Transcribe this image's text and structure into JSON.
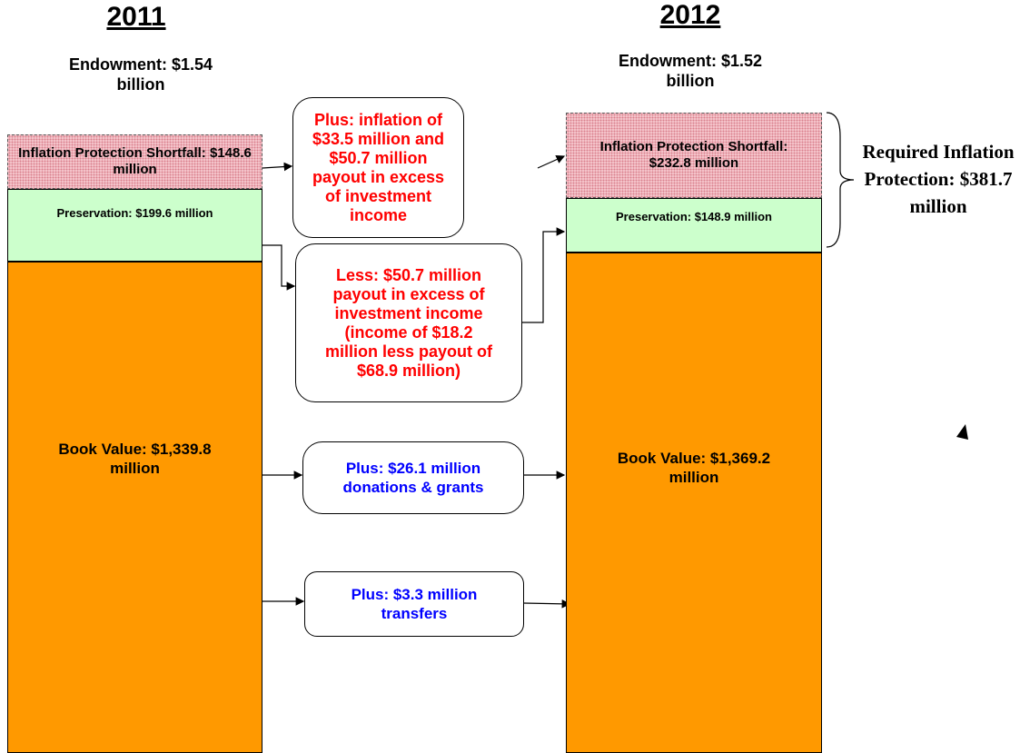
{
  "columns": [
    {
      "year": "2011",
      "endowment": "Endowment: $1.54 billion",
      "shortfall": "Inflation Protection Shortfall: $148.6 million",
      "preservation": "Preservation: $199.6 million",
      "book_value": "Book Value: $1,339.8 million"
    },
    {
      "year": "2012",
      "endowment": "Endowment: $1.52 billion",
      "shortfall": "Inflation Protection Shortfall: $232.8 million",
      "preservation": "Preservation: $148.9 million",
      "book_value": "Book Value: $1,369.2 million"
    }
  ],
  "changes": [
    "Plus: inflation of $33.5 million and $50.7 million payout in excess of investment income",
    "Less: $50.7 million payout in excess of investment income (income of $18.2 million less payout of $68.9 million)",
    "Plus: $26.1 million donations & grants",
    "Plus: $3.3 million transfers"
  ],
  "required": "Required Inflation Protection: $381.7 million"
}
